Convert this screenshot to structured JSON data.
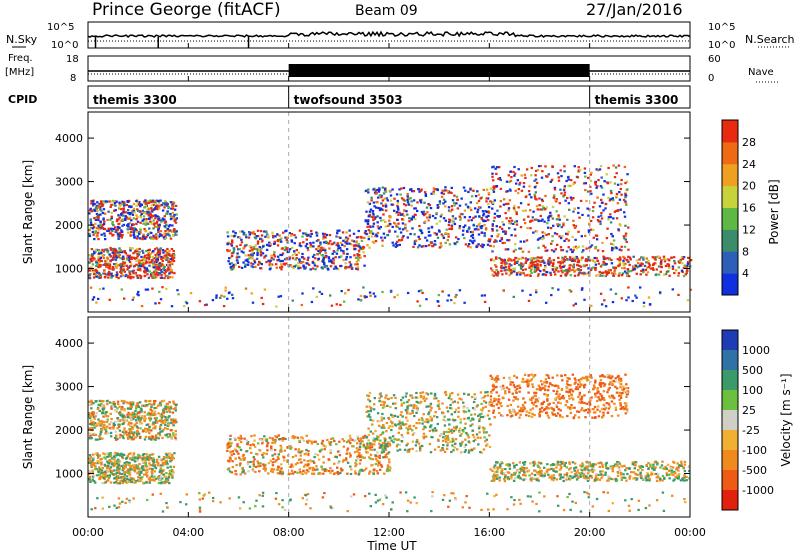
{
  "header": {
    "station": "Prince George (fitACF)",
    "beam": "Beam 09",
    "date": "27/Jan/2016"
  },
  "panel_labels": {
    "nsky": "N.Sky",
    "nsearch": "N.Search",
    "freq_line1": "Freq.",
    "freq_line2": "[MHz]",
    "nave": "Nave",
    "cpid": "CPID",
    "nsky_ticks": [
      "10^5",
      "10^0"
    ],
    "freq_ticks": [
      "18",
      "8"
    ],
    "nave_ticks": [
      "60",
      "0"
    ]
  },
  "cpid_segments": [
    {
      "label": "themis 3300",
      "start": 0,
      "end": 8
    },
    {
      "label": "twofsound 3503",
      "start": 8,
      "end": 20
    },
    {
      "label": "themis 3300",
      "start": 20,
      "end": 24
    }
  ],
  "colorbars": {
    "power": {
      "label": "Power [dB]",
      "ticks": [
        "4",
        "8",
        "12",
        "16",
        "20",
        "24",
        "28"
      ],
      "colors": [
        "#1030e0",
        "#2e5fb8",
        "#3a8c6a",
        "#5fb844",
        "#c8d23c",
        "#f0a020",
        "#ef6a14",
        "#e82a10"
      ]
    },
    "velocity": {
      "label": "Velocity [m s⁻¹]",
      "ticks": [
        "1000",
        "500",
        "100",
        "25",
        "-25",
        "-100",
        "-500",
        "-1000"
      ],
      "colors": [
        "#1e3cb4",
        "#2f72a6",
        "#3a9a6a",
        "#6cc040",
        "#cfcfc8",
        "#f0b032",
        "#f08a1e",
        "#ef5a14",
        "#e2200e"
      ]
    }
  },
  "axes": {
    "y_label": "Slant Range [km]",
    "y_ticks": [
      "1000",
      "2000",
      "3000",
      "4000"
    ],
    "x_label": "Time UT",
    "x_ticks": [
      "00:00",
      "04:00",
      "08:00",
      "12:00",
      "16:00",
      "20:00",
      "00:00"
    ]
  },
  "chart_data": {
    "type": "heatmap",
    "title": "Prince George (fitACF) Beam 09 27/Jan/2016",
    "xlabel": "Time UT",
    "ylabel": "Slant Range [km]",
    "xlim": [
      0,
      24
    ],
    "ylim": [
      0,
      4600
    ],
    "panels": [
      {
        "name": "Power [dB]",
        "clim": [
          0,
          30
        ],
        "regions": [
          {
            "t": [
              0.0,
              3.4
            ],
            "r": [
              800,
              1500
            ],
            "value": 26
          },
          {
            "t": [
              0.0,
              3.5
            ],
            "r": [
              1700,
              2600
            ],
            "value": 14
          },
          {
            "t": [
              5.5,
              11.0
            ],
            "r": [
              1000,
              1900
            ],
            "value": 12
          },
          {
            "t": [
              11.0,
              16.0
            ],
            "r": [
              1500,
              2900
            ],
            "value": 8
          },
          {
            "t": [
              16.0,
              24.0
            ],
            "r": [
              850,
              1300
            ],
            "value": 26
          },
          {
            "t": [
              16.0,
              21.5
            ],
            "r": [
              1400,
              3400
            ],
            "value": 18
          },
          {
            "t": [
              0.0,
              24.0
            ],
            "r": [
              150,
              600
            ],
            "value": 6
          }
        ]
      },
      {
        "name": "Velocity [m s-1]",
        "clim": [
          -1000,
          1000
        ],
        "regions": [
          {
            "t": [
              0.0,
              3.4
            ],
            "r": [
              800,
              1500
            ],
            "value": 0
          },
          {
            "t": [
              0.0,
              3.5
            ],
            "r": [
              1800,
              2700
            ],
            "value": -100
          },
          {
            "t": [
              5.5,
              12.0
            ],
            "r": [
              1000,
              1900
            ],
            "value": -300
          },
          {
            "t": [
              11.0,
              16.0
            ],
            "r": [
              1500,
              2900
            ],
            "value": 0
          },
          {
            "t": [
              16.0,
              24.0
            ],
            "r": [
              850,
              1300
            ],
            "value": 0
          },
          {
            "t": [
              16.0,
              21.5
            ],
            "r": [
              2300,
              3300
            ],
            "value": -500
          },
          {
            "t": [
              0.0,
              24.0
            ],
            "r": [
              150,
              600
            ],
            "value": -50
          }
        ]
      }
    ]
  }
}
